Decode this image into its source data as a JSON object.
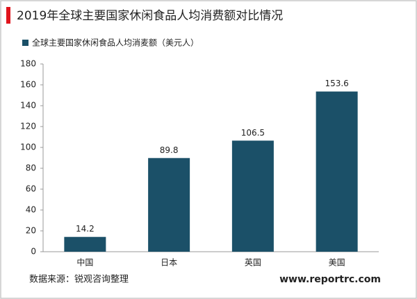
{
  "chart_data": {
    "type": "bar",
    "title": "2019年全球主要国家休闲食品人均消费额对比情况",
    "categories": [
      "中国",
      "日本",
      "英国",
      "美国"
    ],
    "series": [
      {
        "name": "全球主要国家休闲食品人均消麦额（美元人）",
        "color": "#1b5068",
        "values": [
          14.2,
          89.8,
          106.5,
          153.6
        ]
      }
    ],
    "ylim": [
      0,
      180
    ],
    "yticks": [
      0,
      20,
      40,
      60,
      80,
      100,
      120,
      140,
      160,
      180
    ],
    "grid": false,
    "source": "数据来源：锐观咨询整理",
    "watermark": "www.reportrc.com"
  }
}
